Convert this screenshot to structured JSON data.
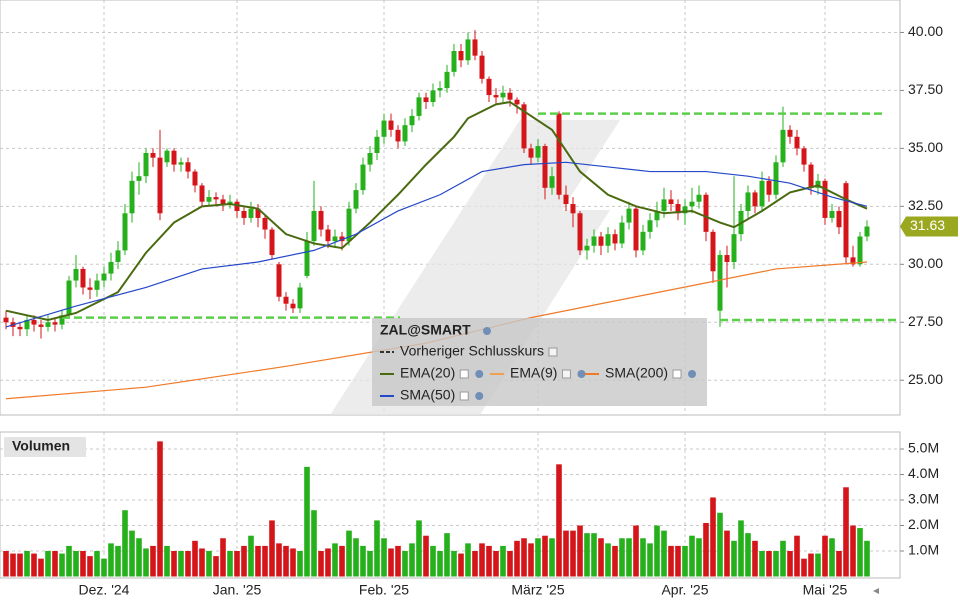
{
  "chart_data": {
    "type": "candlestick",
    "title": "ZAL@SMART",
    "categories": [
      null,
      null,
      null,
      null,
      null,
      null,
      null,
      null,
      null,
      null,
      null,
      null,
      null,
      null,
      "Dez. '24",
      null,
      null,
      null,
      null,
      null,
      null,
      null,
      null,
      null,
      null,
      null,
      null,
      null,
      null,
      null,
      null,
      null,
      null,
      "Jan. '25",
      null,
      null,
      null,
      null,
      null,
      null,
      null,
      null,
      null,
      null,
      null,
      null,
      null,
      null,
      null,
      null,
      null,
      null,
      null,
      null,
      "Feb. '25",
      null,
      null,
      null,
      null,
      null,
      null,
      null,
      null,
      null,
      null,
      null,
      null,
      null,
      null,
      null,
      null,
      null,
      null,
      null,
      null,
      null,
      "März '25",
      null,
      null,
      null,
      null,
      null,
      null,
      null,
      null,
      null,
      null,
      null,
      null,
      null,
      null,
      null,
      null,
      null,
      null,
      null,
      null,
      "Apr. '25",
      null,
      null,
      null,
      null,
      null,
      null,
      null,
      null,
      null,
      null,
      null,
      null,
      null,
      null,
      null,
      null,
      null,
      null,
      null,
      "Mai '25",
      null,
      null,
      null,
      null,
      null,
      null
    ],
    "open": [
      27.7,
      27.5,
      27.3,
      27.2,
      27.6,
      27.4,
      27.3,
      27.5,
      27.4,
      27.8,
      29.3,
      29.8,
      29.0,
      28.9,
      29.3,
      29.6,
      30.1,
      30.6,
      32.2,
      33.6,
      33.8,
      34.8,
      34.6,
      34.4,
      34.9,
      34.3,
      34.4,
      34.0,
      33.4,
      32.7,
      32.9,
      32.8,
      32.6,
      32.7,
      32.3,
      32.0,
      32.4,
      32.0,
      31.5,
      30.0,
      28.6,
      28.3,
      28.1,
      29.5,
      31.0,
      32.3,
      31.5,
      31.0,
      31.2,
      31.0,
      32.4,
      33.2,
      34.3,
      34.8,
      35.5,
      36.2,
      35.8,
      35.3,
      36.0,
      36.4,
      37.2,
      37.0,
      37.5,
      37.6,
      38.3,
      39.2,
      38.8,
      39.7,
      39.0,
      38.0,
      37.3,
      37.2,
      37.4,
      37.1,
      36.9,
      35.0,
      34.6,
      35.1,
      33.3,
      36.5,
      33.0,
      32.6,
      32.2,
      30.6,
      30.8,
      31.2,
      30.8,
      31.3,
      30.9,
      31.8,
      32.4,
      30.6,
      31.4,
      31.9,
      32.3,
      32.8,
      32.6,
      32.2,
      32.5,
      32.7,
      33.0,
      31.4,
      28.0,
      30.4,
      30.1,
      31.3,
      32.3,
      33.1,
      32.5,
      33.6,
      33.0,
      34.4,
      35.8,
      35.5,
      35.0,
      34.3,
      33.3,
      33.6,
      32.0,
      32.3,
      33.5,
      30.3,
      30.0,
      31.2
    ],
    "high": [
      28.0,
      27.7,
      27.5,
      27.8,
      27.8,
      27.6,
      27.8,
      27.7,
      28.0,
      29.5,
      30.4,
      29.9,
      29.4,
      29.6,
      29.9,
      30.5,
      31.0,
      32.6,
      34.0,
      34.4,
      35.0,
      35.0,
      35.8,
      35.0,
      35.0,
      34.6,
      34.6,
      34.1,
      33.5,
      33.2,
      33.1,
      33.0,
      33.0,
      32.8,
      32.5,
      32.7,
      32.6,
      32.1,
      31.6,
      30.1,
      28.8,
      28.5,
      29.2,
      31.4,
      33.6,
      32.5,
      31.7,
      31.5,
      31.4,
      32.7,
      33.5,
      34.6,
      35.1,
      35.8,
      36.5,
      36.5,
      36.0,
      36.3,
      36.7,
      37.4,
      37.4,
      37.8,
      37.9,
      38.6,
      39.5,
      39.5,
      40.0,
      40.1,
      39.2,
      38.1,
      37.6,
      37.7,
      37.6,
      37.2,
      37.0,
      35.2,
      35.4,
      35.2,
      34.2,
      36.6,
      33.4,
      32.9,
      32.3,
      31.1,
      31.5,
      31.4,
      31.6,
      31.5,
      32.1,
      32.7,
      32.5,
      31.7,
      32.2,
      32.7,
      33.3,
      33.2,
      32.8,
      32.8,
      33.3,
      33.4,
      33.1,
      31.5,
      30.6,
      30.8,
      33.8,
      32.6,
      33.4,
      33.2,
      34.0,
      33.8,
      34.7,
      36.8,
      36.0,
      35.8,
      35.1,
      34.4,
      33.9,
      33.7,
      32.6,
      32.5,
      33.6,
      30.8,
      31.4,
      31.9
    ],
    "low": [
      27.2,
      26.9,
      26.9,
      26.9,
      27.1,
      26.8,
      27.1,
      27.1,
      27.2,
      27.7,
      29.0,
      28.7,
      28.5,
      28.6,
      29.0,
      29.3,
      29.8,
      30.4,
      31.8,
      33.0,
      33.5,
      34.2,
      31.9,
      34.2,
      34.0,
      34.0,
      33.7,
      33.1,
      32.5,
      32.5,
      32.5,
      32.3,
      32.4,
      32.0,
      31.7,
      31.8,
      31.6,
      31.1,
      30.2,
      28.4,
      28.0,
      27.9,
      27.9,
      29.4,
      30.8,
      31.2,
      30.7,
      30.7,
      30.6,
      30.8,
      32.2,
      33.0,
      34.0,
      34.5,
      35.2,
      35.5,
      35.0,
      35.1,
      35.7,
      36.2,
      36.7,
      36.8,
      37.2,
      37.4,
      38.1,
      38.5,
      38.6,
      38.8,
      37.8,
      37.0,
      36.9,
      37.0,
      36.8,
      36.5,
      34.8,
      34.3,
      34.4,
      32.8,
      33.0,
      32.8,
      32.3,
      31.6,
      30.4,
      30.2,
      30.5,
      30.4,
      30.5,
      30.6,
      30.7,
      31.5,
      30.3,
      30.4,
      31.1,
      31.6,
      32.0,
      32.3,
      31.9,
      31.7,
      32.2,
      32.4,
      31.0,
      29.2,
      27.3,
      29.0,
      29.8,
      31.0,
      32.0,
      32.2,
      32.3,
      32.7,
      32.8,
      34.2,
      35.2,
      34.7,
      34.0,
      33.0,
      33.0,
      31.7,
      31.8,
      31.3,
      30.0,
      29.9,
      29.9,
      31.0
    ],
    "close": [
      27.5,
      27.3,
      27.2,
      27.6,
      27.4,
      27.3,
      27.5,
      27.4,
      27.8,
      29.3,
      29.8,
      29.0,
      28.9,
      29.3,
      29.6,
      30.1,
      30.6,
      32.2,
      33.6,
      33.8,
      34.8,
      34.6,
      32.2,
      34.9,
      34.3,
      34.4,
      34.0,
      33.4,
      32.7,
      32.9,
      32.8,
      32.6,
      32.7,
      32.3,
      32.0,
      32.4,
      32.0,
      31.5,
      30.4,
      28.6,
      28.3,
      28.1,
      29.0,
      31.0,
      32.3,
      31.5,
      31.0,
      31.2,
      31.0,
      32.4,
      33.2,
      34.3,
      34.8,
      35.5,
      36.2,
      35.8,
      35.3,
      36.0,
      36.4,
      37.2,
      37.0,
      37.5,
      37.6,
      38.3,
      39.2,
      38.8,
      39.7,
      39.0,
      38.0,
      37.3,
      37.2,
      37.4,
      37.1,
      36.9,
      35.0,
      34.6,
      35.1,
      33.3,
      33.8,
      33.0,
      32.6,
      32.2,
      30.6,
      30.8,
      31.2,
      30.8,
      31.3,
      30.9,
      31.8,
      32.4,
      30.6,
      31.4,
      31.9,
      32.3,
      32.8,
      32.6,
      32.2,
      32.5,
      32.7,
      33.0,
      31.4,
      29.7,
      30.4,
      30.1,
      31.3,
      32.3,
      33.1,
      32.5,
      33.6,
      33.0,
      34.4,
      35.8,
      35.5,
      35.0,
      34.3,
      33.3,
      33.6,
      32.0,
      32.3,
      31.6,
      30.3,
      30.0,
      31.2,
      31.63
    ],
    "up_color": "#25b01c",
    "down_color": "#d4161b",
    "ylim": [
      23.5,
      41.4
    ],
    "yticks": [
      {
        "value": 25,
        "label": "25.00"
      },
      {
        "value": 27.5,
        "label": "27.50"
      },
      {
        "value": 30,
        "label": "30.00"
      },
      {
        "value": 32.5,
        "label": "32.50"
      },
      {
        "value": 35,
        "label": "35.00"
      },
      {
        "value": 37.5,
        "label": "37.50"
      },
      {
        "value": 40,
        "label": "40.00"
      }
    ],
    "grid": true,
    "series": [
      {
        "name": "Vorheriger Schlusskurs",
        "color": "#333333"
      },
      {
        "name": "EMA(20)",
        "color": "#4a6a10",
        "x": [
          0,
          6,
          10,
          16,
          20,
          24,
          28,
          32,
          36,
          40,
          44,
          48,
          52,
          56,
          60,
          64,
          66,
          70,
          72,
          74,
          78,
          82,
          86,
          90,
          94,
          98,
          102,
          104,
          108,
          112,
          116,
          120,
          123
        ],
        "values": [
          28.0,
          27.6,
          27.9,
          28.8,
          30.5,
          31.8,
          32.5,
          32.6,
          32.4,
          31.3,
          30.9,
          30.7,
          31.8,
          33.0,
          34.3,
          35.5,
          36.3,
          36.9,
          37.0,
          36.6,
          35.8,
          34.0,
          33.0,
          32.5,
          32.2,
          32.3,
          31.8,
          31.6,
          32.3,
          33.1,
          33.4,
          32.8,
          32.4
        ]
      },
      {
        "name": "EMA(9)",
        "color": "#f0a050"
      },
      {
        "name": "SMA(200)",
        "color": "#f07a28",
        "x": [
          0,
          20,
          40,
          60,
          75,
          90,
          100,
          110,
          123
        ],
        "values": [
          24.2,
          24.7,
          25.6,
          26.6,
          27.7,
          28.6,
          29.2,
          29.8,
          30.1
        ]
      },
      {
        "name": "SMA(50)",
        "color": "#2448c8",
        "x": [
          0,
          10,
          20,
          28,
          36,
          44,
          50,
          56,
          62,
          68,
          74,
          80,
          86,
          92,
          100,
          106,
          112,
          118,
          123
        ],
        "values": [
          27.3,
          28.2,
          29.0,
          29.8,
          30.1,
          30.6,
          31.3,
          32.3,
          33.0,
          34.0,
          34.3,
          34.4,
          34.2,
          34.0,
          34.0,
          33.8,
          33.5,
          32.9,
          32.5
        ]
      }
    ],
    "levels": [
      {
        "value": 27.7,
        "from": 8,
        "to": 52
      },
      {
        "value": 36.5,
        "from": 76,
        "to": 121
      },
      {
        "value": 27.6,
        "from": 102,
        "to": 123
      }
    ],
    "level_color": "#5ccf4a",
    "volume": {
      "title": "Volumen",
      "values": [
        1.0,
        0.9,
        0.9,
        1.0,
        0.9,
        0.7,
        1.0,
        1.0,
        0.9,
        1.2,
        1.0,
        1.0,
        0.8,
        1.0,
        0.7,
        1.3,
        1.2,
        2.6,
        1.8,
        1.5,
        1.1,
        1.2,
        5.3,
        1.2,
        1.0,
        1.0,
        1.0,
        1.4,
        1.1,
        1.0,
        0.8,
        1.5,
        1.0,
        1.0,
        1.2,
        1.6,
        1.2,
        1.2,
        2.2,
        1.3,
        1.2,
        1.1,
        1.0,
        4.3,
        2.6,
        1.0,
        1.1,
        1.3,
        1.2,
        1.8,
        1.5,
        1.2,
        1.0,
        2.2,
        1.5,
        1.1,
        1.2,
        1.0,
        1.3,
        2.2,
        1.6,
        1.2,
        1.0,
        1.7,
        1.0,
        0.9,
        1.3,
        1.0,
        1.3,
        1.2,
        1.0,
        1.2,
        1.0,
        1.4,
        1.5,
        1.3,
        1.5,
        1.6,
        1.5,
        4.4,
        1.8,
        1.8,
        2.0,
        1.7,
        1.7,
        1.5,
        1.3,
        1.2,
        1.5,
        1.5,
        2.0,
        1.5,
        1.3,
        2.0,
        1.8,
        1.2,
        1.2,
        1.2,
        1.6,
        1.5,
        2.1,
        3.1,
        2.5,
        1.8,
        1.4,
        2.2,
        1.7,
        1.4,
        1.0,
        1.0,
        1.0,
        1.4,
        1.0,
        1.6,
        0.7,
        0.9,
        0.9,
        1.6,
        1.5,
        1.0,
        3.5,
        2.0,
        1.9,
        1.4
      ],
      "ylim": [
        0,
        5.55
      ],
      "yticks": [
        {
          "value": 1,
          "label": "1.0M"
        },
        {
          "value": 2,
          "label": "2.0M"
        },
        {
          "value": 3,
          "label": "3.0M"
        },
        {
          "value": 4,
          "label": "4.0M"
        },
        {
          "value": 5,
          "label": "5.0M"
        }
      ]
    }
  }
}
